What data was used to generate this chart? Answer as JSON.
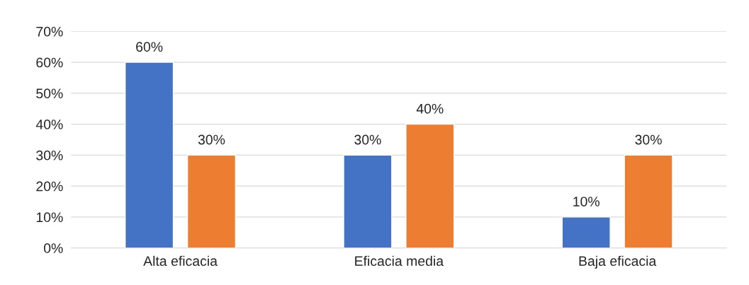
{
  "chart_data": {
    "type": "bar",
    "categories": [
      "Alta eficacia",
      "Eficacia media",
      "Baja eficacia"
    ],
    "series": [
      {
        "color": "#4472c4",
        "values": [
          60,
          30,
          10
        ],
        "value_labels": [
          "60%",
          "30%",
          "10%"
        ]
      },
      {
        "color": "#ed7d31",
        "values": [
          30,
          40,
          30
        ],
        "value_labels": [
          "30%",
          "40%",
          "30%"
        ]
      }
    ],
    "ylim": [
      0,
      70
    ],
    "yticks": [
      {
        "value": 0,
        "label": "0%"
      },
      {
        "value": 10,
        "label": "10%"
      },
      {
        "value": 20,
        "label": "20%"
      },
      {
        "value": 30,
        "label": "30%"
      },
      {
        "value": 40,
        "label": "40%"
      },
      {
        "value": 50,
        "label": "50%"
      },
      {
        "value": 60,
        "label": "60%"
      },
      {
        "value": 70,
        "label": "70%"
      }
    ],
    "grid": "y",
    "legend": false
  }
}
